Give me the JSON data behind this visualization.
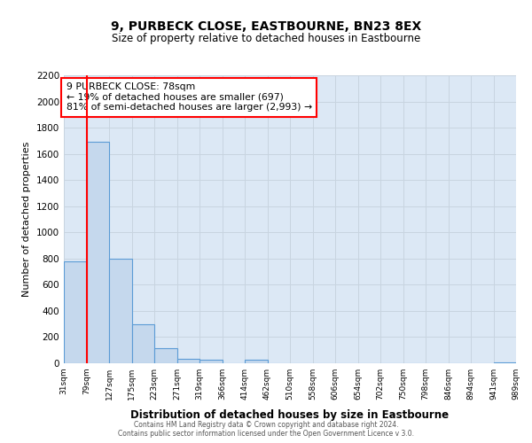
{
  "title": "9, PURBECK CLOSE, EASTBOURNE, BN23 8EX",
  "subtitle": "Size of property relative to detached houses in Eastbourne",
  "xlabel": "Distribution of detached houses by size in Eastbourne",
  "ylabel": "Number of detached properties",
  "bar_values": [
    780,
    1690,
    800,
    300,
    115,
    35,
    30,
    0,
    25,
    0,
    0,
    0,
    0,
    0,
    0,
    0,
    0,
    0,
    0,
    5
  ],
  "bar_labels": [
    "31sqm",
    "79sqm",
    "127sqm",
    "175sqm",
    "223sqm",
    "271sqm",
    "319sqm",
    "366sqm",
    "414sqm",
    "462sqm",
    "510sqm",
    "558sqm",
    "606sqm",
    "654sqm",
    "702sqm",
    "750sqm",
    "798sqm",
    "846sqm",
    "894sqm",
    "941sqm",
    "989sqm"
  ],
  "bar_color": "#c5d8ed",
  "bar_edge_color": "#5b9bd5",
  "grid_color": "#c8d4e0",
  "background_color": "#dce8f5",
  "annotation_line1": "9 PURBECK CLOSE: 78sqm",
  "annotation_line2": "← 19% of detached houses are smaller (697)",
  "annotation_line3": "81% of semi-detached houses are larger (2,993) →",
  "red_line_x": 1,
  "ylim": [
    0,
    2200
  ],
  "yticks": [
    0,
    200,
    400,
    600,
    800,
    1000,
    1200,
    1400,
    1600,
    1800,
    2000,
    2200
  ],
  "footer1": "Contains HM Land Registry data © Crown copyright and database right 2024.",
  "footer2": "Contains public sector information licensed under the Open Government Licence v 3.0."
}
